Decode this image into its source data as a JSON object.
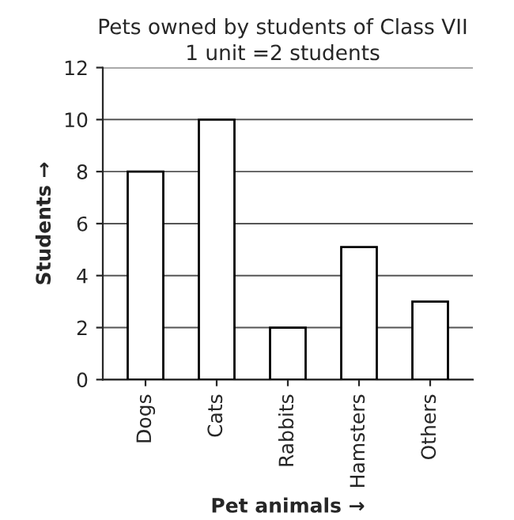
{
  "chart_data": {
    "type": "bar",
    "title": "Pets owned by students of Class VII",
    "subtitle": "1 unit =2 students",
    "xlabel": "Pet animals →",
    "ylabel": "Students →",
    "categories": [
      "Dogs",
      "Cats",
      "Rabbits",
      "Hamsters",
      "Others"
    ],
    "values": [
      8,
      10,
      2,
      5.1,
      3
    ],
    "color": "#ffffff",
    "ylim": [
      0,
      12
    ],
    "yticks": [
      0,
      2,
      4,
      6,
      8,
      10,
      12
    ],
    "grid": "y"
  }
}
